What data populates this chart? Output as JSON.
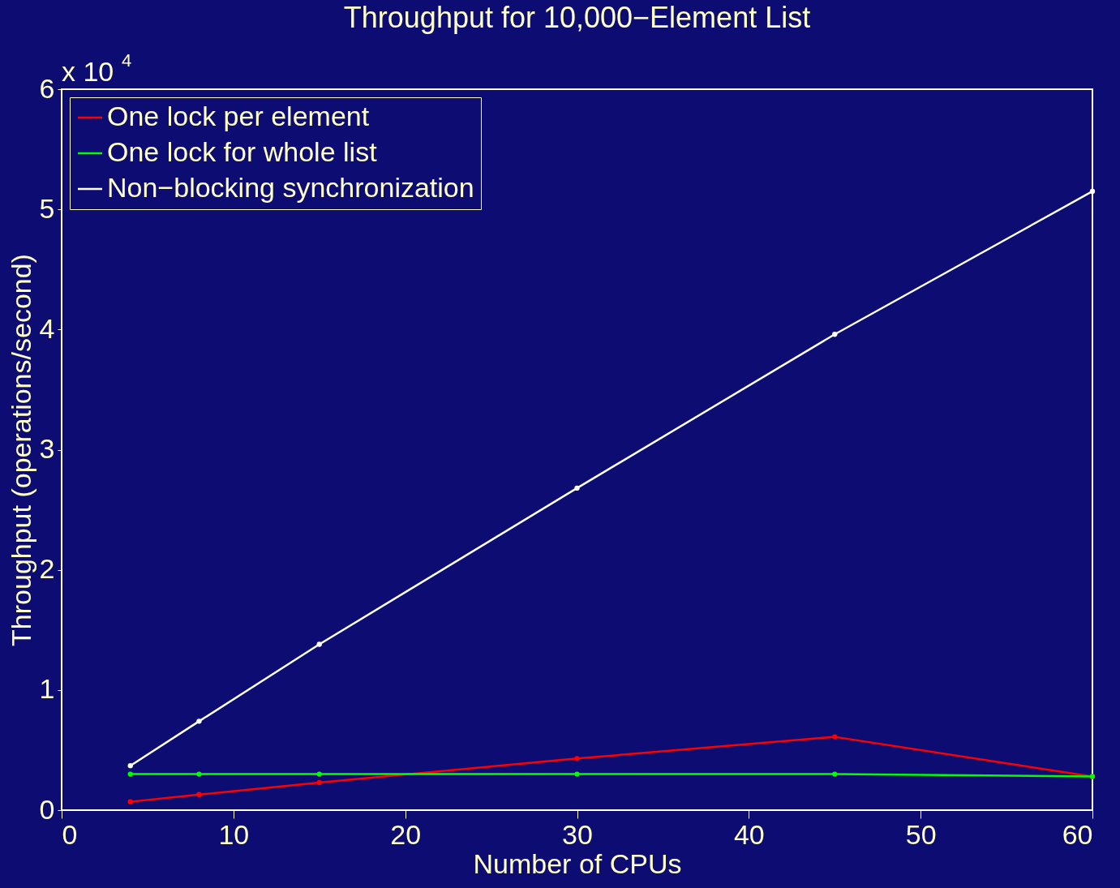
{
  "chart_data": {
    "type": "line",
    "title": "Throughput for 10,000−Element List",
    "xlabel": "Number of CPUs",
    "ylabel": "Throughput (operations/second)",
    "annotations": [
      "x 10$^{4}$"
    ],
    "x": [
      4,
      8,
      15,
      30,
      45,
      60
    ],
    "series": [
      {
        "name": "One lock per element",
        "color": "#ff0000",
        "values": [
          0.07,
          0.13,
          0.23,
          0.43,
          0.61,
          0.28
        ]
      },
      {
        "name": "One lock for whole list",
        "color": "#00ff00",
        "values": [
          0.3,
          0.3,
          0.3,
          0.3,
          0.3,
          0.28
        ]
      },
      {
        "name": "Non−blocking synchronization",
        "color": "#ffffff",
        "values": [
          0.37,
          0.74,
          1.38,
          2.68,
          3.96,
          5.15
        ]
      }
    ],
    "xlim": [
      0,
      60
    ],
    "xticks": [
      0,
      10,
      20,
      30,
      40,
      50,
      60
    ],
    "ylim": [
      0,
      6
    ],
    "yticks": [
      0,
      1,
      2,
      3,
      4,
      5,
      6
    ],
    "grid": false,
    "legend": "top left",
    "marker": "circle",
    "line_style": "solid"
  }
}
